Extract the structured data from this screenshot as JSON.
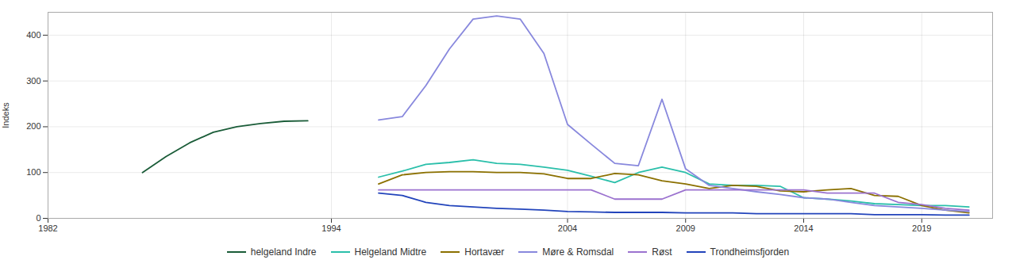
{
  "chart_data": {
    "type": "line",
    "ylabel": "Indeks",
    "xlim": [
      1982,
      2022
    ],
    "ylim": [
      0,
      450
    ],
    "xticks": [
      1982,
      1994,
      2004,
      2009,
      2014,
      2019
    ],
    "yticks": [
      0,
      100,
      200,
      300,
      400
    ],
    "grid": true,
    "legend": "bottom",
    "series": [
      {
        "name": "helgeland Indre",
        "color": "#1a5c38",
        "x": [
          1986,
          1987,
          1988,
          1989,
          1990,
          1991,
          1992,
          1993
        ],
        "values": [
          100,
          135,
          165,
          188,
          200,
          207,
          212,
          213
        ]
      },
      {
        "name": "Helgeland Midtre",
        "color": "#2abfaa",
        "x": [
          1996,
          1997,
          1998,
          1999,
          2000,
          2001,
          2002,
          2003,
          2004,
          2005,
          2006,
          2007,
          2008,
          2009,
          2010,
          2011,
          2012,
          2013,
          2014,
          2015,
          2016,
          2017,
          2018,
          2019,
          2020,
          2021
        ],
        "values": [
          90,
          103,
          118,
          122,
          128,
          120,
          118,
          112,
          105,
          92,
          78,
          100,
          112,
          100,
          75,
          72,
          72,
          70,
          45,
          42,
          38,
          32,
          30,
          28,
          28,
          25
        ]
      },
      {
        "name": "Hortavær",
        "color": "#8B7000",
        "x": [
          1996,
          1997,
          1998,
          1999,
          2000,
          2001,
          2002,
          2003,
          2004,
          2005,
          2006,
          2007,
          2008,
          2009,
          2010,
          2011,
          2012,
          2013,
          2014,
          2015,
          2016,
          2017,
          2018,
          2019,
          2020,
          2021
        ],
        "values": [
          75,
          95,
          100,
          102,
          102,
          100,
          100,
          97,
          87,
          87,
          98,
          95,
          82,
          75,
          65,
          72,
          70,
          60,
          58,
          62,
          65,
          50,
          48,
          28,
          18,
          12
        ]
      },
      {
        "name": "Møre & Romsdal",
        "color": "#8888dd",
        "x": [
          1996,
          1997,
          1998,
          1999,
          2000,
          2001,
          2002,
          2003,
          2004,
          2005,
          2006,
          2007,
          2008,
          2009,
          2010,
          2011,
          2012,
          2013,
          2014,
          2015,
          2016,
          2017,
          2018,
          2019,
          2020,
          2021
        ],
        "values": [
          215,
          222,
          290,
          370,
          435,
          442,
          435,
          360,
          205,
          162,
          120,
          115,
          260,
          108,
          72,
          65,
          58,
          52,
          45,
          42,
          35,
          28,
          25,
          22,
          18,
          15
        ]
      },
      {
        "name": "Røst",
        "color": "#9b72cf",
        "x": [
          1996,
          1997,
          1998,
          1999,
          2000,
          2001,
          2002,
          2003,
          2004,
          2005,
          2006,
          2007,
          2008,
          2009,
          2010,
          2011,
          2012,
          2013,
          2014,
          2015,
          2016,
          2017,
          2018,
          2019,
          2020,
          2021
        ],
        "values": [
          62,
          62,
          62,
          62,
          62,
          62,
          62,
          62,
          62,
          62,
          42,
          42,
          42,
          62,
          62,
          62,
          62,
          62,
          62,
          55,
          55,
          55,
          35,
          30,
          22,
          18
        ]
      },
      {
        "name": "Trondheimsfjorden",
        "color": "#2244bb",
        "x": [
          1996,
          1997,
          1998,
          1999,
          2000,
          2001,
          2002,
          2003,
          2004,
          2005,
          2006,
          2007,
          2008,
          2009,
          2010,
          2011,
          2012,
          2013,
          2014,
          2015,
          2016,
          2017,
          2018,
          2019,
          2020,
          2021
        ],
        "values": [
          55,
          50,
          35,
          28,
          25,
          22,
          20,
          18,
          15,
          14,
          13,
          13,
          13,
          12,
          12,
          12,
          10,
          10,
          10,
          10,
          10,
          8,
          8,
          8,
          7,
          7
        ]
      }
    ]
  }
}
